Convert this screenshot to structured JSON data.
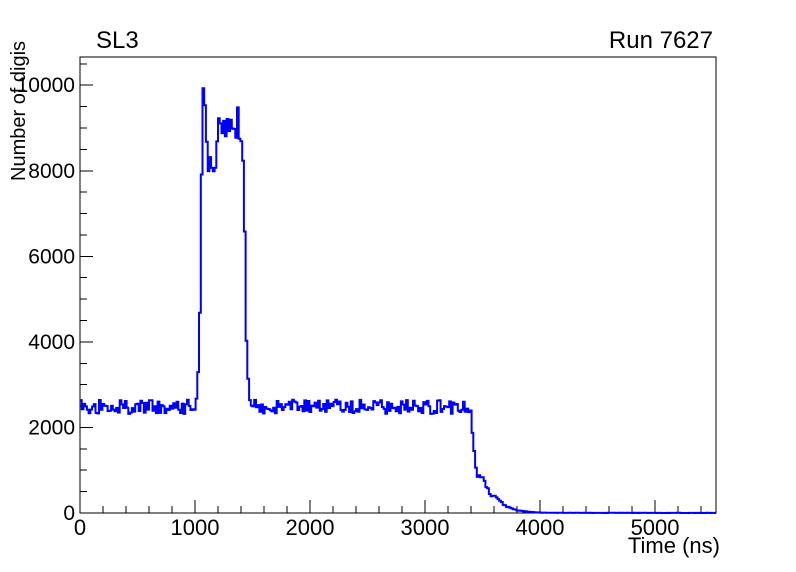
{
  "chart_data": {
    "type": "line",
    "title": "SL3",
    "annotation": "Run 7627",
    "xlabel": "Time (ns)",
    "ylabel": "Number of digis",
    "xlim": [
      0,
      5530
    ],
    "ylim": [
      0,
      10660
    ],
    "x_major_ticks": [
      0,
      1000,
      2000,
      3000,
      4000,
      5000
    ],
    "x_minor_step": 200,
    "y_major_ticks": [
      0,
      2000,
      4000,
      6000,
      8000,
      10000
    ],
    "y_minor_step": 500,
    "grid": false,
    "legend": null,
    "line_color": "#0000ff",
    "axis_color": "#000000",
    "background_color": "#ffffff",
    "noise_seed": 20240607,
    "bin_width_ns": 15,
    "series": [
      {
        "name": "number-of-digis-vs-time",
        "style": "histogram-step",
        "description": "Noisy baseline of ~2500 digis from 0-1020 ns; sharp spike to ~10200 at ~1075 ns; fluctuating signal plateau between ~8000 and ~9600 from ~1100-1430 ns; return to ~2500 baseline until ~3390 ns; steep drop with shoulder near ~800 at ~3450-3520 ns; tail decaying to zero by ~4000 ns; flat at zero out to 5530 ns",
        "envelope_points_x_value_noise": [
          [
            0,
            2500,
            170
          ],
          [
            1005,
            2500,
            170
          ],
          [
            1022,
            2650,
            200
          ],
          [
            1038,
            3900,
            400
          ],
          [
            1052,
            7200,
            500
          ],
          [
            1066,
            9900,
            250
          ],
          [
            1076,
            10200,
            120
          ],
          [
            1086,
            9600,
            300
          ],
          [
            1100,
            8800,
            300
          ],
          [
            1118,
            8150,
            300
          ],
          [
            1136,
            8500,
            380
          ],
          [
            1155,
            8150,
            320
          ],
          [
            1175,
            8350,
            400
          ],
          [
            1200,
            8900,
            450
          ],
          [
            1230,
            9000,
            420
          ],
          [
            1258,
            9250,
            380
          ],
          [
            1285,
            8950,
            420
          ],
          [
            1315,
            9100,
            430
          ],
          [
            1345,
            9000,
            400
          ],
          [
            1372,
            9250,
            330
          ],
          [
            1394,
            8950,
            350
          ],
          [
            1412,
            8500,
            350
          ],
          [
            1428,
            7200,
            350
          ],
          [
            1443,
            4800,
            300
          ],
          [
            1458,
            3100,
            220
          ],
          [
            1472,
            2650,
            180
          ],
          [
            1490,
            2520,
            170
          ],
          [
            1800,
            2500,
            170
          ],
          [
            2200,
            2505,
            170
          ],
          [
            2600,
            2495,
            170
          ],
          [
            3000,
            2505,
            170
          ],
          [
            3385,
            2500,
            170
          ],
          [
            3402,
            2350,
            130
          ],
          [
            3420,
            1650,
            130
          ],
          [
            3438,
            1050,
            90
          ],
          [
            3460,
            880,
            70
          ],
          [
            3500,
            800,
            60
          ],
          [
            3535,
            640,
            50
          ],
          [
            3565,
            450,
            45
          ],
          [
            3600,
            390,
            35
          ],
          [
            3640,
            310,
            30
          ],
          [
            3680,
            210,
            25
          ],
          [
            3720,
            140,
            20
          ],
          [
            3765,
            90,
            14
          ],
          [
            3820,
            55,
            10
          ],
          [
            3890,
            30,
            8
          ],
          [
            3980,
            14,
            6
          ],
          [
            4100,
            6,
            3
          ],
          [
            4300,
            3,
            2
          ],
          [
            5530,
            2,
            2
          ]
        ]
      }
    ]
  }
}
